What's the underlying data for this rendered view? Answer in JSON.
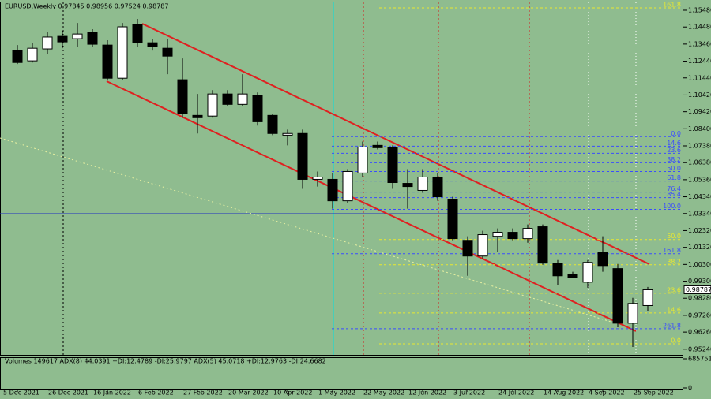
{
  "chart_data": {
    "type": "candlestick",
    "header": "EURUSD,Weekly  0.97845 0.98956 0.97524 0.98787",
    "indicator_label": "Volumes 149617  ADX(8) 44.0391 +DI:12.4789 -DI:25.9797  ADX(5) 45.0718 +DI:12.9763 -DI:24.6682",
    "categories": [
      "5 Dec 2021",
      null,
      null,
      "26 Dec 2021",
      null,
      null,
      "16 Jan 2022",
      null,
      null,
      "6 Feb 2022",
      null,
      null,
      "27 Feb 2022",
      null,
      null,
      "20 Mar 2022",
      null,
      null,
      "10 Apr 2022",
      null,
      null,
      "1 May 2022",
      null,
      null,
      "22 May 2022",
      null,
      null,
      "12 Jun 2022",
      null,
      null,
      "3 Jul 2022",
      null,
      null,
      "24 Jul 2022",
      null,
      null,
      "14 Aug 2022",
      null,
      null,
      "4 Sep 2022",
      null,
      null,
      "25 Sep 2022"
    ],
    "open": [
      1.1307,
      1.1246,
      1.1317,
      1.1392,
      1.1378,
      1.1416,
      1.134,
      1.1142,
      1.1463,
      1.1354,
      1.1321,
      1.1133,
      1.092,
      1.0916,
      1.1048,
      1.0986,
      1.1038,
      1.092,
      1.0802,
      1.0812,
      1.0538,
      1.0538,
      1.041,
      1.0576,
      1.0741,
      1.0727,
      1.0514,
      1.0472,
      1.0552,
      1.042,
      1.0174,
      1.008,
      1.0198,
      1.0222,
      1.0184,
      1.0255,
      1.0038,
      0.9972,
      0.9924,
      1.0104,
      1.0005,
      0.9679,
      0.97845
    ],
    "high": [
      1.134,
      1.1354,
      1.1416,
      1.1425,
      1.1472,
      1.1435,
      1.1369,
      1.1472,
      1.1496,
      1.1378,
      1.1378,
      1.126,
      1.1048,
      1.1071,
      1.1071,
      1.1166,
      1.1057,
      1.093,
      1.0835,
      1.0835,
      1.0585,
      1.0576,
      1.0599,
      1.0764,
      1.0764,
      1.0741,
      1.0599,
      1.0599,
      1.0576,
      1.0434,
      1.0198,
      1.0231,
      1.0245,
      1.0245,
      1.0269,
      1.0269,
      1.0056,
      0.9986,
      1.0056,
      1.0198,
      1.0033,
      0.983,
      0.98956
    ],
    "low": [
      1.1227,
      1.1236,
      1.1284,
      1.1321,
      1.1331,
      1.1331,
      1.1128,
      1.1133,
      1.1331,
      1.1307,
      1.1166,
      1.0906,
      1.0812,
      1.0906,
      1.0977,
      1.0977,
      1.0859,
      1.0802,
      1.0741,
      1.0481,
      1.0495,
      1.0363,
      1.0396,
      1.0552,
      1.0717,
      1.0481,
      1.0363,
      1.0458,
      1.041,
      1.0174,
      0.9962,
      1.0066,
      1.0104,
      1.0174,
      1.016,
      1.0028,
      0.9905,
      0.9953,
      0.9891,
      0.9986,
      0.9655,
      0.9537,
      0.97524
    ],
    "close": [
      1.1236,
      1.1321,
      1.1388,
      1.1359,
      1.1406,
      1.1345,
      1.1142,
      1.1449,
      1.1354,
      1.1331,
      1.1274,
      1.093,
      1.0906,
      1.1048,
      1.0986,
      1.1048,
      1.0882,
      1.0812,
      1.0812,
      1.0538,
      1.0552,
      1.041,
      1.0585,
      1.0731,
      1.0727,
      1.0519,
      1.0495,
      1.0552,
      1.0434,
      1.0184,
      1.008,
      1.0208,
      1.0222,
      1.0184,
      1.0245,
      1.0038,
      0.9962,
      0.9953,
      1.0042,
      1.0023,
      0.9679,
      0.9797,
      0.98787
    ],
    "up_color": "#ffffff",
    "down_color": "#000000",
    "ylim": [
      0.949,
      1.1595
    ],
    "yticks": [
      {
        "value": 1.1548,
        "label": "1.15480"
      },
      {
        "value": 1.1448,
        "label": "1.14480"
      },
      {
        "value": 1.1346,
        "label": "1.13460"
      },
      {
        "value": 1.1244,
        "label": "1.12440"
      },
      {
        "value": 1.1144,
        "label": "1.11440"
      },
      {
        "value": 1.1042,
        "label": "1.10420"
      },
      {
        "value": 1.0942,
        "label": "1.09420"
      },
      {
        "value": 1.084,
        "label": "1.08400"
      },
      {
        "value": 1.0738,
        "label": "1.07380"
      },
      {
        "value": 1.0638,
        "label": "1.06380"
      },
      {
        "value": 1.0536,
        "label": "1.05360"
      },
      {
        "value": 1.0434,
        "label": "1.04340"
      },
      {
        "value": 1.0334,
        "label": "1.03340"
      },
      {
        "value": 1.0232,
        "label": "1.02320"
      },
      {
        "value": 1.0132,
        "label": "1.01320"
      },
      {
        "value": 1.003,
        "label": "1.00300"
      },
      {
        "value": 0.993,
        "label": "0.99300"
      },
      {
        "value": 0.9828,
        "label": "0.98280"
      },
      {
        "value": 0.9726,
        "label": "0.97260"
      },
      {
        "value": 0.9626,
        "label": "0.96260"
      },
      {
        "value": 0.9524,
        "label": "0.95240"
      }
    ],
    "last_price": {
      "value": 0.98787,
      "label": "0.98787"
    },
    "fib_levels": [
      {
        "color": "#3a4cff",
        "levels": [
          {
            "label": "0.0",
            "value": 1.0793
          },
          {
            "label": "14.6",
            "value": 1.0736
          },
          {
            "label": "23.6",
            "value": 1.0694
          },
          {
            "label": "38.2",
            "value": 1.0637
          },
          {
            "label": "50.0",
            "value": 1.0585
          },
          {
            "label": "61.8",
            "value": 1.0528
          },
          {
            "label": "76.4",
            "value": 1.0462
          },
          {
            "label": "85.4",
            "value": 1.0429
          },
          {
            "label": "100.0",
            "value": 1.0359
          },
          {
            "label": "161.8",
            "value": 1.0094
          },
          {
            "label": "261.8",
            "value": 0.9646
          }
        ]
      },
      {
        "color": "#e8e830",
        "levels": [
          {
            "label": "161.8",
            "value": 1.1562
          },
          {
            "label": "50.0",
            "value": 1.0179
          },
          {
            "label": "38.2",
            "value": 1.0028
          },
          {
            "label": "23.6",
            "value": 0.9858
          },
          {
            "label": "14.6",
            "value": 0.974
          },
          {
            "label": "0.0",
            "value": 0.9556
          }
        ]
      }
    ],
    "volume_ylim": [
      0,
      685751
    ],
    "volume_ticks": [
      685751,
      0
    ]
  }
}
